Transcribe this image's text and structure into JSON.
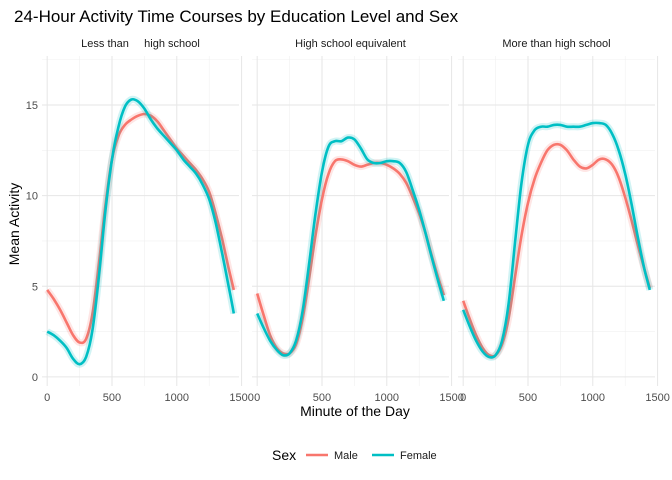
{
  "chart_data": {
    "type": "line",
    "title": "24-Hour Activity Time Courses by Education Level and Sex",
    "xlabel": "Minute of the Day",
    "ylabel": "Mean Activity",
    "xlim": [
      -40,
      1480
    ],
    "ylim": [
      -0.5,
      17.7
    ],
    "x_ticks": [
      0,
      500,
      1000,
      1500
    ],
    "y_ticks": [
      0,
      5,
      10,
      15
    ],
    "grid": true,
    "legend": {
      "title": "Sex",
      "position": "bottom"
    },
    "series_styles": [
      {
        "name": "Male",
        "color": "#F8766D"
      },
      {
        "name": "Female",
        "color": "#00BFC4"
      }
    ],
    "panels": [
      {
        "label": "Less than     high school",
        "series": [
          {
            "name": "Male",
            "x": [
              0,
              50,
              100,
              150,
              200,
              250,
              300,
              350,
              400,
              450,
              500,
              550,
              600,
              650,
              700,
              750,
              800,
              850,
              900,
              950,
              1000,
              1050,
              1100,
              1150,
              1200,
              1250,
              1300,
              1350,
              1400,
              1440
            ],
            "y": [
              4.8,
              4.3,
              3.7,
              3.0,
              2.3,
              1.9,
              2.1,
              3.5,
              6.3,
              9.5,
              12.0,
              13.3,
              13.9,
              14.2,
              14.4,
              14.5,
              14.4,
              14.1,
              13.6,
              13.1,
              12.6,
              12.2,
              11.8,
              11.4,
              10.9,
              10.2,
              9.0,
              7.6,
              6.0,
              4.8
            ]
          },
          {
            "name": "Female",
            "x": [
              0,
              50,
              100,
              150,
              200,
              250,
              300,
              350,
              400,
              450,
              500,
              550,
              600,
              650,
              700,
              750,
              800,
              850,
              900,
              950,
              1000,
              1050,
              1100,
              1150,
              1200,
              1250,
              1300,
              1350,
              1400,
              1440
            ],
            "y": [
              2.5,
              2.3,
              2.0,
              1.6,
              1.0,
              0.7,
              1.1,
              2.6,
              5.6,
              9.2,
              12.0,
              13.8,
              14.9,
              15.3,
              15.2,
              14.8,
              14.2,
              13.7,
              13.3,
              12.9,
              12.5,
              12.0,
              11.6,
              11.2,
              10.6,
              9.8,
              8.5,
              6.8,
              5.0,
              3.5
            ]
          }
        ]
      },
      {
        "label": "High school equivalent",
        "series": [
          {
            "name": "Male",
            "x": [
              0,
              50,
              100,
              150,
              200,
              250,
              300,
              350,
              400,
              450,
              500,
              550,
              600,
              650,
              700,
              750,
              800,
              850,
              900,
              950,
              1000,
              1050,
              1100,
              1150,
              1200,
              1250,
              1300,
              1350,
              1400,
              1440
            ],
            "y": [
              4.6,
              3.4,
              2.3,
              1.6,
              1.3,
              1.3,
              1.8,
              3.2,
              5.4,
              7.8,
              9.8,
              11.2,
              11.9,
              12.0,
              11.9,
              11.7,
              11.6,
              11.7,
              11.8,
              11.8,
              11.7,
              11.5,
              11.2,
              10.7,
              9.9,
              9.0,
              7.9,
              6.6,
              5.4,
              4.5
            ]
          },
          {
            "name": "Female",
            "x": [
              0,
              50,
              100,
              150,
              200,
              250,
              300,
              350,
              400,
              450,
              500,
              550,
              600,
              650,
              700,
              750,
              800,
              850,
              900,
              950,
              1000,
              1050,
              1100,
              1150,
              1200,
              1250,
              1300,
              1350,
              1400,
              1440
            ],
            "y": [
              3.5,
              2.7,
              2.0,
              1.5,
              1.2,
              1.3,
              2.0,
              3.6,
              6.2,
              9.0,
              11.3,
              12.7,
              13.0,
              13.0,
              13.2,
              13.1,
              12.6,
              12.0,
              11.8,
              11.8,
              11.9,
              11.9,
              11.8,
              11.3,
              10.3,
              9.2,
              7.9,
              6.5,
              5.2,
              4.2
            ]
          }
        ]
      },
      {
        "label": "More than high school",
        "series": [
          {
            "name": "Male",
            "x": [
              0,
              50,
              100,
              150,
              200,
              250,
              300,
              350,
              400,
              450,
              500,
              550,
              600,
              650,
              700,
              750,
              800,
              850,
              900,
              950,
              1000,
              1050,
              1100,
              1150,
              1200,
              1250,
              1300,
              1350,
              1400,
              1440
            ],
            "y": [
              4.2,
              3.2,
              2.3,
              1.6,
              1.2,
              1.2,
              1.8,
              3.2,
              5.5,
              7.8,
              9.6,
              10.9,
              11.8,
              12.5,
              12.8,
              12.8,
              12.5,
              12.0,
              11.6,
              11.5,
              11.7,
              12.0,
              12.0,
              11.7,
              11.0,
              9.9,
              8.6,
              7.2,
              5.9,
              4.9
            ]
          },
          {
            "name": "Female",
            "x": [
              0,
              50,
              100,
              150,
              200,
              250,
              300,
              350,
              400,
              450,
              500,
              550,
              600,
              650,
              700,
              750,
              800,
              850,
              900,
              950,
              1000,
              1050,
              1100,
              1150,
              1200,
              1250,
              1300,
              1350,
              1400,
              1440
            ],
            "y": [
              3.7,
              2.8,
              2.0,
              1.4,
              1.1,
              1.2,
              2.0,
              4.0,
              7.4,
              10.7,
              12.8,
              13.6,
              13.8,
              13.8,
              13.9,
              13.9,
              13.8,
              13.8,
              13.8,
              13.9,
              14.0,
              14.0,
              13.9,
              13.4,
              12.5,
              11.2,
              9.5,
              7.6,
              5.9,
              4.8
            ]
          }
        ]
      }
    ]
  }
}
